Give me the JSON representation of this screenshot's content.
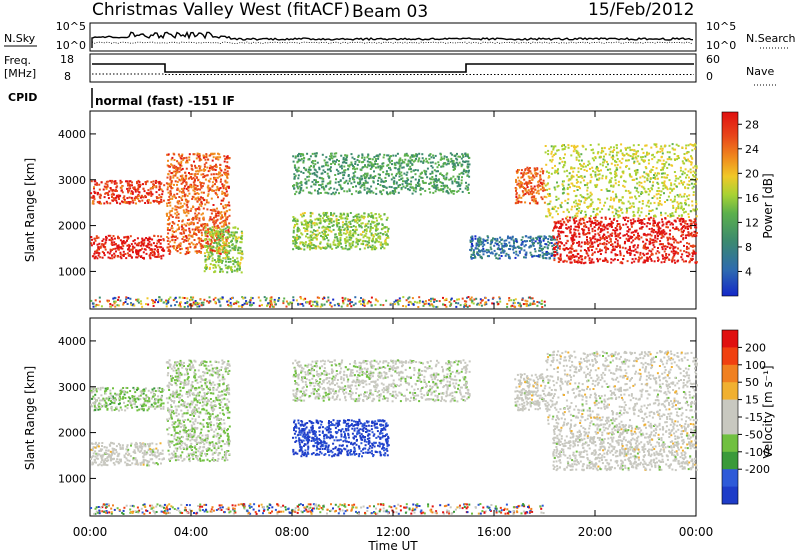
{
  "header": {
    "title": "Christmas Valley West (fitACF)",
    "beam": "Beam 03",
    "date": "15/Feb/2012"
  },
  "top_panels": {
    "nsky_label": "N.Sky",
    "nsearch_label": "N.Search",
    "noise_ticks_left": [
      "10^5",
      "10^0"
    ],
    "noise_ticks_right": [
      "10^5",
      "10^0"
    ],
    "freq_label_1": "Freq.",
    "freq_label_2": "[MHz]",
    "freq_ticks": [
      "18",
      "8"
    ],
    "nave_ticks": [
      "60",
      "0"
    ],
    "nave_label": "Nave",
    "cpid_label": "CPID",
    "cpid_text": "normal (fast) -151 IF"
  },
  "panels": {
    "power": {
      "ylabel": "Slant Range [km]",
      "cbar_label": "Power [dB]",
      "cbar_ticks": [
        "28",
        "24",
        "20",
        "16",
        "12",
        "8",
        "4"
      ]
    },
    "velocity": {
      "ylabel": "Slant Range [km]",
      "cbar_label": "Velocity [m s⁻¹]",
      "cbar_ticks": [
        "200",
        "100",
        "50",
        "15",
        "-15",
        "-50",
        "-100",
        "-200"
      ]
    }
  },
  "x_axis": {
    "label": "Time UT",
    "ticks": [
      "00:00",
      "04:00",
      "08:00",
      "12:00",
      "16:00",
      "20:00",
      "00:00"
    ]
  },
  "colors": {
    "power_scale": [
      "#1428c8",
      "#2e6ab0",
      "#3c8a6e",
      "#5cb04c",
      "#a8d234",
      "#f0c828",
      "#f08c1e",
      "#e8461a",
      "#e01010"
    ],
    "velocity_scale": [
      "#1e3cc8",
      "#2e5ad8",
      "#3a9a3a",
      "#70c040",
      "#c8c8c0",
      "#c8c8c0",
      "#f0b030",
      "#f08020",
      "#f04010",
      "#e01010"
    ]
  },
  "chart_data": [
    {
      "type": "heatmap",
      "title": "",
      "xlabel": "Time UT",
      "ylabel": "Slant Range [km]",
      "xlim": [
        "00:00",
        "24:00"
      ],
      "ylim": [
        180,
        4500
      ],
      "y_ticks": [
        1000,
        2000,
        3000,
        4000
      ],
      "colorbar": {
        "label": "Power [dB]",
        "ticks": [
          4,
          8,
          12,
          16,
          20,
          24,
          28
        ],
        "range": [
          0,
          30
        ]
      },
      "features": [
        {
          "time_start_h": 0.0,
          "time_end_h": 2.9,
          "range_min_km": 1300,
          "range_max_km": 1800,
          "value_db": 28
        },
        {
          "time_start_h": 0.0,
          "time_end_h": 2.9,
          "range_min_km": 2500,
          "range_max_km": 3000,
          "value_db": 26
        },
        {
          "time_start_h": 3.0,
          "time_end_h": 5.5,
          "range_min_km": 1400,
          "range_max_km": 3600,
          "value_db": 24
        },
        {
          "time_start_h": 4.5,
          "time_end_h": 6.0,
          "range_min_km": 1000,
          "range_max_km": 2000,
          "value_db": 14
        },
        {
          "time_start_h": 8.0,
          "time_end_h": 11.8,
          "range_min_km": 1500,
          "range_max_km": 2300,
          "value_db": 14
        },
        {
          "time_start_h": 8.0,
          "time_end_h": 15.0,
          "range_min_km": 2700,
          "range_max_km": 3600,
          "value_db": 10
        },
        {
          "time_start_h": 15.0,
          "time_end_h": 18.5,
          "range_min_km": 1300,
          "range_max_km": 1800,
          "value_db": 6
        },
        {
          "time_start_h": 16.8,
          "time_end_h": 18.0,
          "range_min_km": 2500,
          "range_max_km": 3300,
          "value_db": 24
        },
        {
          "time_start_h": 18.3,
          "time_end_h": 24.0,
          "range_min_km": 1200,
          "range_max_km": 2200,
          "value_db": 28
        },
        {
          "time_start_h": 18.0,
          "time_end_h": 24.0,
          "range_min_km": 2200,
          "range_max_km": 3800,
          "value_db": 16
        }
      ]
    },
    {
      "type": "heatmap",
      "title": "",
      "xlabel": "Time UT",
      "ylabel": "Slant Range [km]",
      "xlim": [
        "00:00",
        "24:00"
      ],
      "ylim": [
        180,
        4500
      ],
      "y_ticks": [
        1000,
        2000,
        3000,
        4000
      ],
      "colorbar": {
        "label": "Velocity [m s⁻¹]",
        "ticks": [
          -200,
          -100,
          -50,
          -15,
          15,
          50,
          100,
          200
        ],
        "range": [
          -250,
          250
        ]
      },
      "features": [
        {
          "time_start_h": 0.0,
          "time_end_h": 2.9,
          "range_min_km": 1300,
          "range_max_km": 1800,
          "value_ms": 0
        },
        {
          "time_start_h": 0.0,
          "time_end_h": 2.9,
          "range_min_km": 2500,
          "range_max_km": 3000,
          "value_ms": -60
        },
        {
          "time_start_h": 3.0,
          "time_end_h": 5.5,
          "range_min_km": 1400,
          "range_max_km": 3600,
          "value_ms": -40
        },
        {
          "time_start_h": 8.0,
          "time_end_h": 11.8,
          "range_min_km": 1500,
          "range_max_km": 2300,
          "value_ms": -220
        },
        {
          "time_start_h": 8.0,
          "time_end_h": 15.0,
          "range_min_km": 2700,
          "range_max_km": 3600,
          "value_ms": -20
        },
        {
          "time_start_h": 16.8,
          "time_end_h": 18.0,
          "range_min_km": 2500,
          "range_max_km": 3300,
          "value_ms": 0
        },
        {
          "time_start_h": 18.3,
          "time_end_h": 24.0,
          "range_min_km": 1200,
          "range_max_km": 2200,
          "value_ms": 0
        },
        {
          "time_start_h": 18.0,
          "time_end_h": 24.0,
          "range_min_km": 2200,
          "range_max_km": 3800,
          "value_ms": 0
        }
      ]
    }
  ]
}
